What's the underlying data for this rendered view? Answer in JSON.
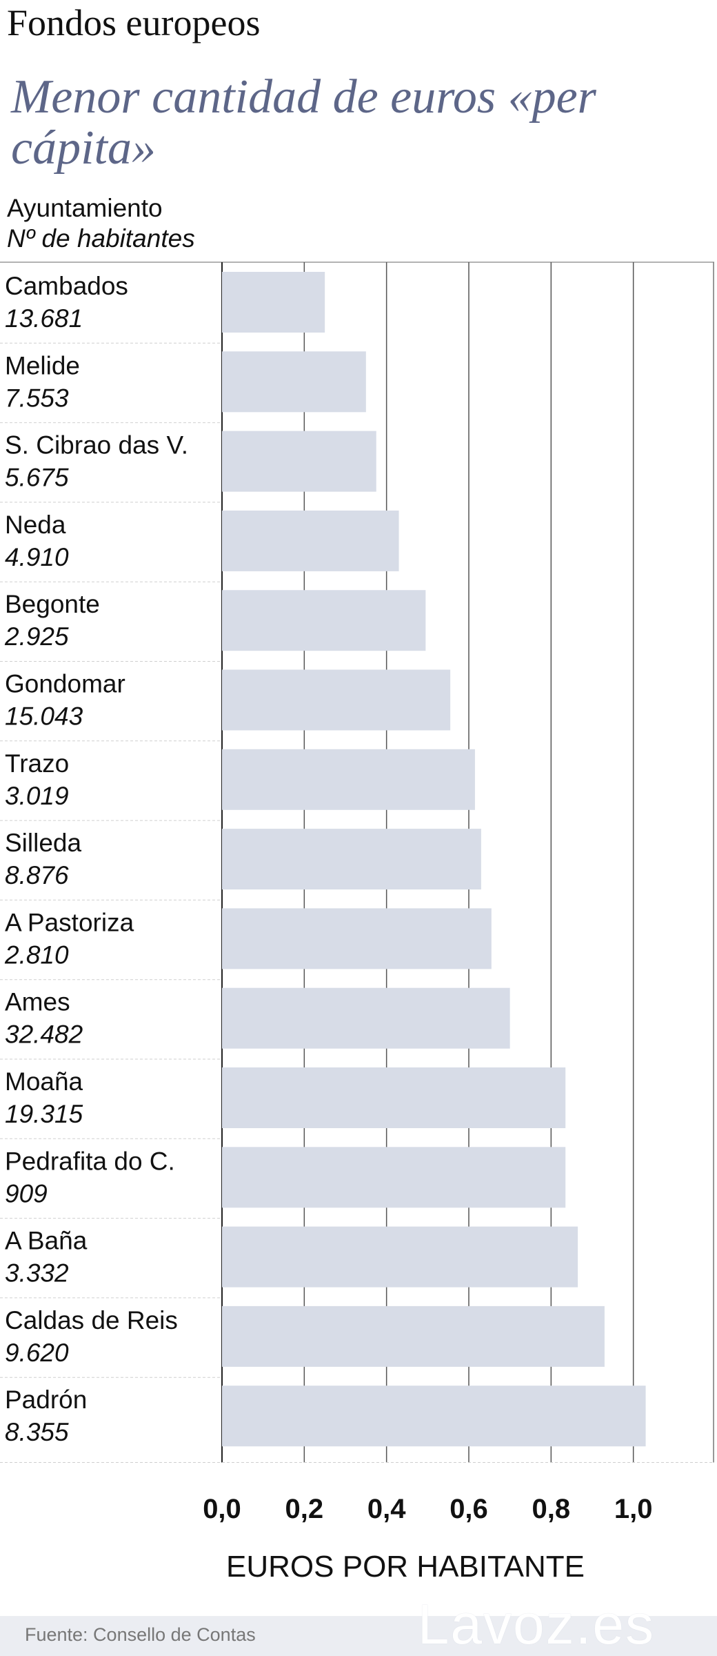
{
  "header": {
    "kicker": "Fondos europeos",
    "title": "Menor cantidad de euros «per cápita»",
    "column_label": "Ayuntamiento",
    "column_sublabel": "Nº de habitantes"
  },
  "chart_data": {
    "type": "bar",
    "orientation": "horizontal",
    "categories": [
      "Cambados",
      "Melide",
      "S. Cibrao das V.",
      "Neda",
      "Begonte",
      "Gondomar",
      "Trazo",
      "Silleda",
      "A Pastoriza",
      "Ames",
      "Moaña",
      "Pedrafita do C.",
      "A Baña",
      "Caldas de Reis",
      "Padrón"
    ],
    "category_sublabels": [
      "13.681",
      "7.553",
      "5.675",
      "4.910",
      "2.925",
      "15.043",
      "3.019",
      "8.876",
      "2.810",
      "32.482",
      "19.315",
      "909",
      "3.332",
      "9.620",
      "8.355"
    ],
    "values": [
      0.25,
      0.35,
      0.375,
      0.43,
      0.495,
      0.555,
      0.615,
      0.63,
      0.655,
      0.7,
      0.835,
      0.835,
      0.865,
      0.93,
      1.03
    ],
    "xlabel": "EUROS POR HABITANTE",
    "xlim": [
      0,
      1.2
    ],
    "xticks": [
      0,
      0.2,
      0.4,
      0.6,
      0.8,
      1.0
    ],
    "xtick_labels": [
      "0,0",
      "0,2",
      "0,4",
      "0,6",
      "0,8",
      "1,0"
    ],
    "grid": true,
    "bar_color": "#d7dce7"
  },
  "footer": {
    "source": "Fuente: Consello de Contas",
    "brand": "Lavoz.es"
  }
}
